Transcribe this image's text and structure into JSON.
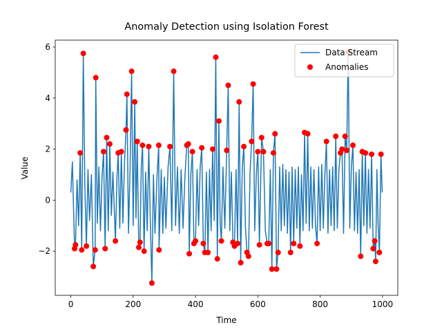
{
  "chart_data": {
    "type": "line",
    "title": "Anomaly Detection using Isolation Forest",
    "xlabel": "Time",
    "ylabel": "Value",
    "xlim": [
      -50,
      1049
    ],
    "ylim": [
      -3.73,
      6.27
    ],
    "xticks": [
      0,
      200,
      400,
      600,
      800,
      1000
    ],
    "yticks": [
      {
        "value": -2,
        "label": "−2"
      },
      0,
      2,
      4,
      6
    ],
    "legend": "upper right",
    "series": [
      {
        "name": "Data Stream",
        "type": "line",
        "color": "#1f77b4",
        "x": [
          0,
          5,
          9,
          12,
          15,
          20,
          25,
          30,
          35,
          40,
          45,
          50,
          55,
          60,
          66,
          72,
          78,
          80,
          85,
          90,
          95,
          100,
          105,
          110,
          115,
          120,
          125,
          130,
          135,
          143,
          148,
          152,
          157,
          162,
          167,
          172,
          177,
          180,
          185,
          190,
          195,
          200,
          205,
          209,
          213,
          218,
          222,
          226,
          230,
          235,
          240,
          245,
          250,
          255,
          260,
          265,
          270,
          276,
          282,
          283,
          290,
          295,
          300,
          305,
          312,
          318,
          324,
          330,
          336,
          342,
          348,
          354,
          360,
          366,
          372,
          377,
          380,
          385,
          390,
          395,
          400,
          405,
          410,
          415,
          420,
          425,
          430,
          435,
          440,
          445,
          450,
          455,
          460,
          465,
          470,
          475,
          479,
          483,
          488,
          494,
          500,
          505,
          510,
          515,
          520,
          525,
          530,
          535,
          540,
          545,
          550,
          555,
          560,
          565,
          570,
          575,
          580,
          585,
          590,
          595,
          600,
          605,
          612,
          618,
          624,
          630,
          635,
          640,
          645,
          650,
          655,
          660,
          665,
          670,
          675,
          680,
          685,
          690,
          695,
          700,
          705,
          710,
          715,
          720,
          725,
          730,
          735,
          740,
          745,
          750,
          755,
          760,
          765,
          770,
          775,
          780,
          785,
          790,
          795,
          800,
          805,
          810,
          815,
          820,
          825,
          830,
          835,
          840,
          845,
          850,
          855,
          860,
          865,
          870,
          875,
          880,
          885,
          890,
          895,
          900,
          905,
          910,
          915,
          920,
          925,
          930,
          935,
          940,
          945,
          950,
          955,
          960,
          965,
          970,
          975,
          978,
          982,
          986,
          990,
          995,
          999
        ],
        "values": [
          0.3,
          1.5,
          -0.5,
          -1.9,
          -1.75,
          0.8,
          -1.0,
          1.85,
          -1.95,
          5.75,
          0.5,
          -1.8,
          1.2,
          -0.8,
          1.0,
          -2.6,
          -1.95,
          4.8,
          -0.9,
          1.3,
          -1.2,
          0.9,
          1.9,
          -1.9,
          2.45,
          -1.2,
          2.2,
          -0.6,
          1.1,
          -1.6,
          0.9,
          1.85,
          -1.1,
          1.9,
          -0.9,
          1.4,
          2.75,
          4.15,
          -1.3,
          1.2,
          5.05,
          -1.0,
          3.85,
          -0.7,
          2.3,
          -1.85,
          -1.65,
          1.3,
          2.15,
          -2.0,
          1.1,
          -1.2,
          2.1,
          -0.8,
          -3.25,
          1.0,
          -1.3,
          0.8,
          2.15,
          -1.95,
          1.2,
          -1.3,
          0.9,
          -1.1,
          1.3,
          2.1,
          -1.2,
          5.05,
          -1.0,
          1.3,
          -1.3,
          1.2,
          -1.1,
          0.9,
          2.15,
          2.2,
          -2.1,
          1.0,
          1.9,
          -1.7,
          -1.6,
          1.2,
          -1.0,
          1.3,
          2.05,
          -1.7,
          -2.05,
          1.1,
          -2.05,
          1.2,
          -1.2,
          2.0,
          -0.8,
          5.6,
          -2.3,
          3.1,
          -0.9,
          -1.6,
          1.3,
          -1.1,
          1.95,
          4.5,
          -1.2,
          1.1,
          -1.65,
          -1.8,
          1.2,
          -1.7,
          3.85,
          -2.45,
          1.3,
          2.1,
          -1.0,
          -2.05,
          -2.2,
          1.1,
          2.3,
          4.55,
          -1.2,
          1.0,
          1.9,
          -1.75,
          2.45,
          1.9,
          -1.2,
          -1.7,
          -1.7,
          1.2,
          -2.7,
          1.85,
          2.6,
          -2.7,
          -2.05,
          1.3,
          -1.2,
          1.4,
          -1.0,
          1.2,
          -1.3,
          1.1,
          -2.05,
          1.3,
          -1.7,
          1.2,
          -1.1,
          1.3,
          -1.8,
          1.0,
          -1.2,
          2.65,
          -0.9,
          2.6,
          -1.2,
          1.3,
          -1.1,
          1.2,
          -1.0,
          -1.7,
          1.3,
          -1.2,
          1.4,
          -1.1,
          1.0,
          2.3,
          -1.3,
          1.2,
          -1.0,
          1.3,
          -1.2,
          2.5,
          -1.1,
          1.2,
          1.85,
          2.0,
          -1.3,
          2.5,
          1.95,
          5.8,
          -1.1,
          1.3,
          2.15,
          -1.2,
          1.1,
          -1.3,
          1.2,
          -2.2,
          1.9,
          -1.0,
          1.85,
          -1.3,
          1.2,
          -1.1,
          1.8,
          -1.9,
          -1.6,
          -2.4,
          1.2,
          -1.0,
          -2.05,
          1.8,
          0.3
        ]
      },
      {
        "name": "Anomalies",
        "type": "scatter",
        "color": "#ff0000",
        "x": [
          12,
          15,
          30,
          35,
          40,
          50,
          72,
          78,
          80,
          105,
          110,
          115,
          125,
          143,
          152,
          162,
          177,
          180,
          195,
          205,
          213,
          218,
          222,
          230,
          235,
          250,
          260,
          282,
          283,
          318,
          330,
          372,
          377,
          380,
          390,
          395,
          400,
          420,
          425,
          430,
          440,
          455,
          465,
          470,
          475,
          483,
          500,
          505,
          520,
          525,
          535,
          540,
          545,
          555,
          565,
          570,
          580,
          585,
          600,
          605,
          612,
          618,
          630,
          635,
          645,
          650,
          655,
          660,
          665,
          705,
          715,
          735,
          750,
          760,
          790,
          820,
          850,
          865,
          870,
          880,
          885,
          890,
          905,
          930,
          935,
          945,
          965,
          970,
          975,
          978,
          990,
          995
        ],
        "values": [
          -1.9,
          -1.75,
          1.85,
          -1.95,
          5.75,
          -1.8,
          -2.6,
          -1.95,
          4.8,
          1.9,
          -1.9,
          2.45,
          2.2,
          -1.6,
          1.85,
          1.9,
          2.75,
          4.15,
          5.05,
          3.85,
          2.3,
          -1.85,
          -1.65,
          2.15,
          -2.0,
          2.1,
          -3.25,
          2.15,
          -1.95,
          2.1,
          5.05,
          2.15,
          2.2,
          -2.1,
          1.9,
          -1.7,
          -1.6,
          2.05,
          -1.7,
          -2.05,
          -2.05,
          2.0,
          5.6,
          -2.3,
          3.1,
          -1.6,
          1.95,
          4.5,
          -1.65,
          -1.8,
          -1.7,
          3.85,
          -2.45,
          2.1,
          -2.05,
          -2.2,
          2.3,
          4.55,
          1.9,
          -1.75,
          2.45,
          1.9,
          -1.7,
          -1.7,
          -2.7,
          1.85,
          2.6,
          -2.7,
          -2.05,
          -2.05,
          -1.7,
          -1.8,
          2.65,
          2.6,
          -1.7,
          2.3,
          2.5,
          1.85,
          2.0,
          2.5,
          1.95,
          5.8,
          2.15,
          -2.2,
          1.9,
          1.85,
          1.8,
          -1.9,
          -1.6,
          -2.4,
          -2.05,
          1.8
        ]
      }
    ]
  }
}
